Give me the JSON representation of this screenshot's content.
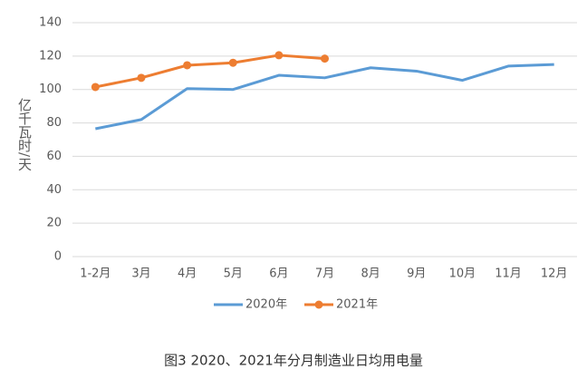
{
  "chart_data": {
    "type": "line",
    "title": "图3 2020、2021年分月制造业日均用电量",
    "y_label": "亿千瓦时/天",
    "categories": [
      "1-2月",
      "3月",
      "4月",
      "5月",
      "6月",
      "7月",
      "8月",
      "9月",
      "10月",
      "11月",
      "12月"
    ],
    "series": [
      {
        "name": "2020年",
        "color": "#5b9bd5",
        "markers": false,
        "values": [
          76.5,
          82,
          100.5,
          100,
          108.5,
          107,
          113,
          111,
          105.5,
          114,
          115
        ]
      },
      {
        "name": "2021年",
        "color": "#ed7d31",
        "markers": true,
        "values": [
          101.5,
          107,
          114.5,
          116,
          120.5,
          118.5,
          null,
          null,
          null,
          null,
          null
        ]
      }
    ],
    "ylim": [
      0,
      140
    ],
    "yticks": [
      0,
      20,
      40,
      60,
      80,
      100,
      120,
      140
    ],
    "grid": true,
    "legend": "bottom"
  }
}
